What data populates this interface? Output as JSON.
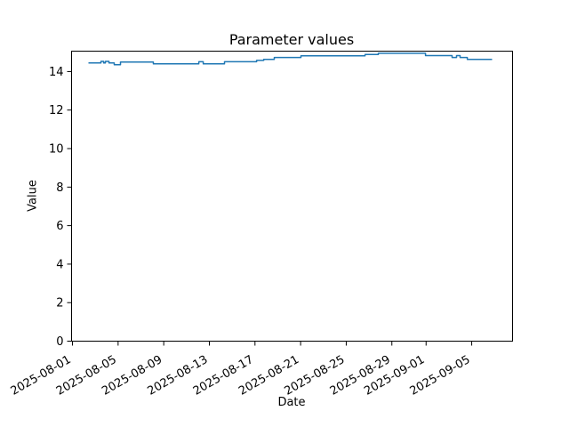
{
  "figure": {
    "title": "Parameter values",
    "xlabel": "Date",
    "ylabel": "Value",
    "background_color": "#ffffff",
    "axes_color": "#000000"
  },
  "chart_data": {
    "type": "line",
    "title": "Parameter values",
    "xlabel": "Date",
    "ylabel": "Value",
    "grid": false,
    "legend": "none",
    "line_color": "#1f77b4",
    "line_width": 1.5,
    "step_mode": "post",
    "x_unit": "days since 2025-08-01",
    "x_epoch": "2025-08-01",
    "xlim": [
      -0.08,
      38.58
    ],
    "ylim": [
      0,
      15.06
    ],
    "x_tick_rotation": 30,
    "x_ticks": [
      {
        "offset": 0,
        "label": "2025-08-01"
      },
      {
        "offset": 4,
        "label": "2025-08-05"
      },
      {
        "offset": 8,
        "label": "2025-08-09"
      },
      {
        "offset": 12,
        "label": "2025-08-13"
      },
      {
        "offset": 16,
        "label": "2025-08-17"
      },
      {
        "offset": 20,
        "label": "2025-08-21"
      },
      {
        "offset": 24,
        "label": "2025-08-25"
      },
      {
        "offset": 28,
        "label": "2025-08-29"
      },
      {
        "offset": 31,
        "label": "2025-09-01"
      },
      {
        "offset": 35,
        "label": "2025-09-05"
      }
    ],
    "y_ticks": [
      0,
      2,
      4,
      6,
      8,
      10,
      12,
      14
    ],
    "series": [
      {
        "name": "Parameter value",
        "points": [
          [
            1.4,
            14.45
          ],
          [
            2.49,
            14.45
          ],
          [
            2.49,
            14.53
          ],
          [
            2.73,
            14.53
          ],
          [
            2.73,
            14.45
          ],
          [
            2.88,
            14.45
          ],
          [
            2.88,
            14.53
          ],
          [
            3.2,
            14.53
          ],
          [
            3.2,
            14.45
          ],
          [
            3.66,
            14.45
          ],
          [
            3.66,
            14.36
          ],
          [
            4.21,
            14.36
          ],
          [
            4.21,
            14.49
          ],
          [
            7.09,
            14.49
          ],
          [
            7.09,
            14.4
          ],
          [
            11.07,
            14.4
          ],
          [
            11.07,
            14.51
          ],
          [
            11.46,
            14.51
          ],
          [
            11.46,
            14.4
          ],
          [
            13.33,
            14.4
          ],
          [
            13.33,
            14.51
          ],
          [
            16.14,
            14.51
          ],
          [
            16.14,
            14.58
          ],
          [
            16.76,
            14.58
          ],
          [
            16.76,
            14.63
          ],
          [
            17.69,
            14.63
          ],
          [
            17.69,
            14.73
          ],
          [
            20.03,
            14.73
          ],
          [
            20.03,
            14.82
          ],
          [
            25.65,
            14.82
          ],
          [
            25.65,
            14.89
          ],
          [
            26.81,
            14.89
          ],
          [
            26.81,
            14.95
          ],
          [
            30.95,
            14.95
          ],
          [
            30.95,
            14.83
          ],
          [
            33.28,
            14.83
          ],
          [
            33.28,
            14.73
          ],
          [
            33.67,
            14.73
          ],
          [
            33.67,
            14.83
          ],
          [
            33.98,
            14.83
          ],
          [
            33.98,
            14.73
          ],
          [
            34.61,
            14.73
          ],
          [
            34.61,
            14.63
          ],
          [
            36.79,
            14.63
          ]
        ]
      }
    ]
  }
}
